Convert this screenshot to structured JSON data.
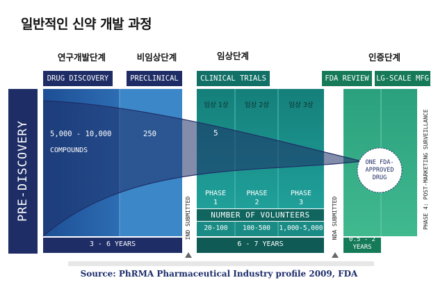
{
  "title": "일반적인 신약 개발 과정",
  "stages": {
    "research": "연구개발단계",
    "nonclinical": "비임상단계",
    "clinical": "임상단계",
    "approval": "인증단계"
  },
  "tags": {
    "drug_discovery": "DRUG DISCOVERY",
    "preclinical": "PRECLINICAL",
    "clinical_trials": "CLINICAL TRIALS",
    "fda_review": "FDA REVIEW",
    "lg_scale_mfg": "LG-SCALE MFG"
  },
  "pre_discovery": "PRE-DISCOVERY",
  "discovery": {
    "count": "5,000 - 10,000",
    "unit": "COMPOUNDS"
  },
  "preclinical_count": "250",
  "clinical_count": "5",
  "phases_kr": {
    "p1": "임상 1상",
    "p2": "임상 2상",
    "p3": "임상 3상"
  },
  "phases": {
    "p1": "PHASE",
    "p1n": "1",
    "p2": "PHASE",
    "p2n": "2",
    "p3": "PHASE",
    "p3n": "3"
  },
  "volunteers": {
    "label": "NUMBER OF VOLUNTEERS",
    "p1": "20-100",
    "p2": "100-500",
    "p3": "1,000-5,000"
  },
  "years": {
    "discovery": "3 - 6 YEARS",
    "clinical": "6 - 7 YEARS",
    "review_a": "0.5 - 2",
    "review_b": "YEARS"
  },
  "markers": {
    "ind": "IND SUBMITTED",
    "nda": "NDA SUBMITTED"
  },
  "approved": {
    "l1": "ONE FDA-",
    "l2": "APPROVED",
    "l3": "DRUG"
  },
  "phase4": "PHASE 4: POST-MARKETING SURVEILLANCE",
  "source": "Source: PhRMA Pharmaceutical Industry profile 2009, FDA",
  "colors": {
    "navy": "#1e2d66",
    "discovery": "#2b67ad",
    "preclinical": "#3a86c8",
    "clinical": "#1f9b96",
    "approval": "#35ad88"
  }
}
